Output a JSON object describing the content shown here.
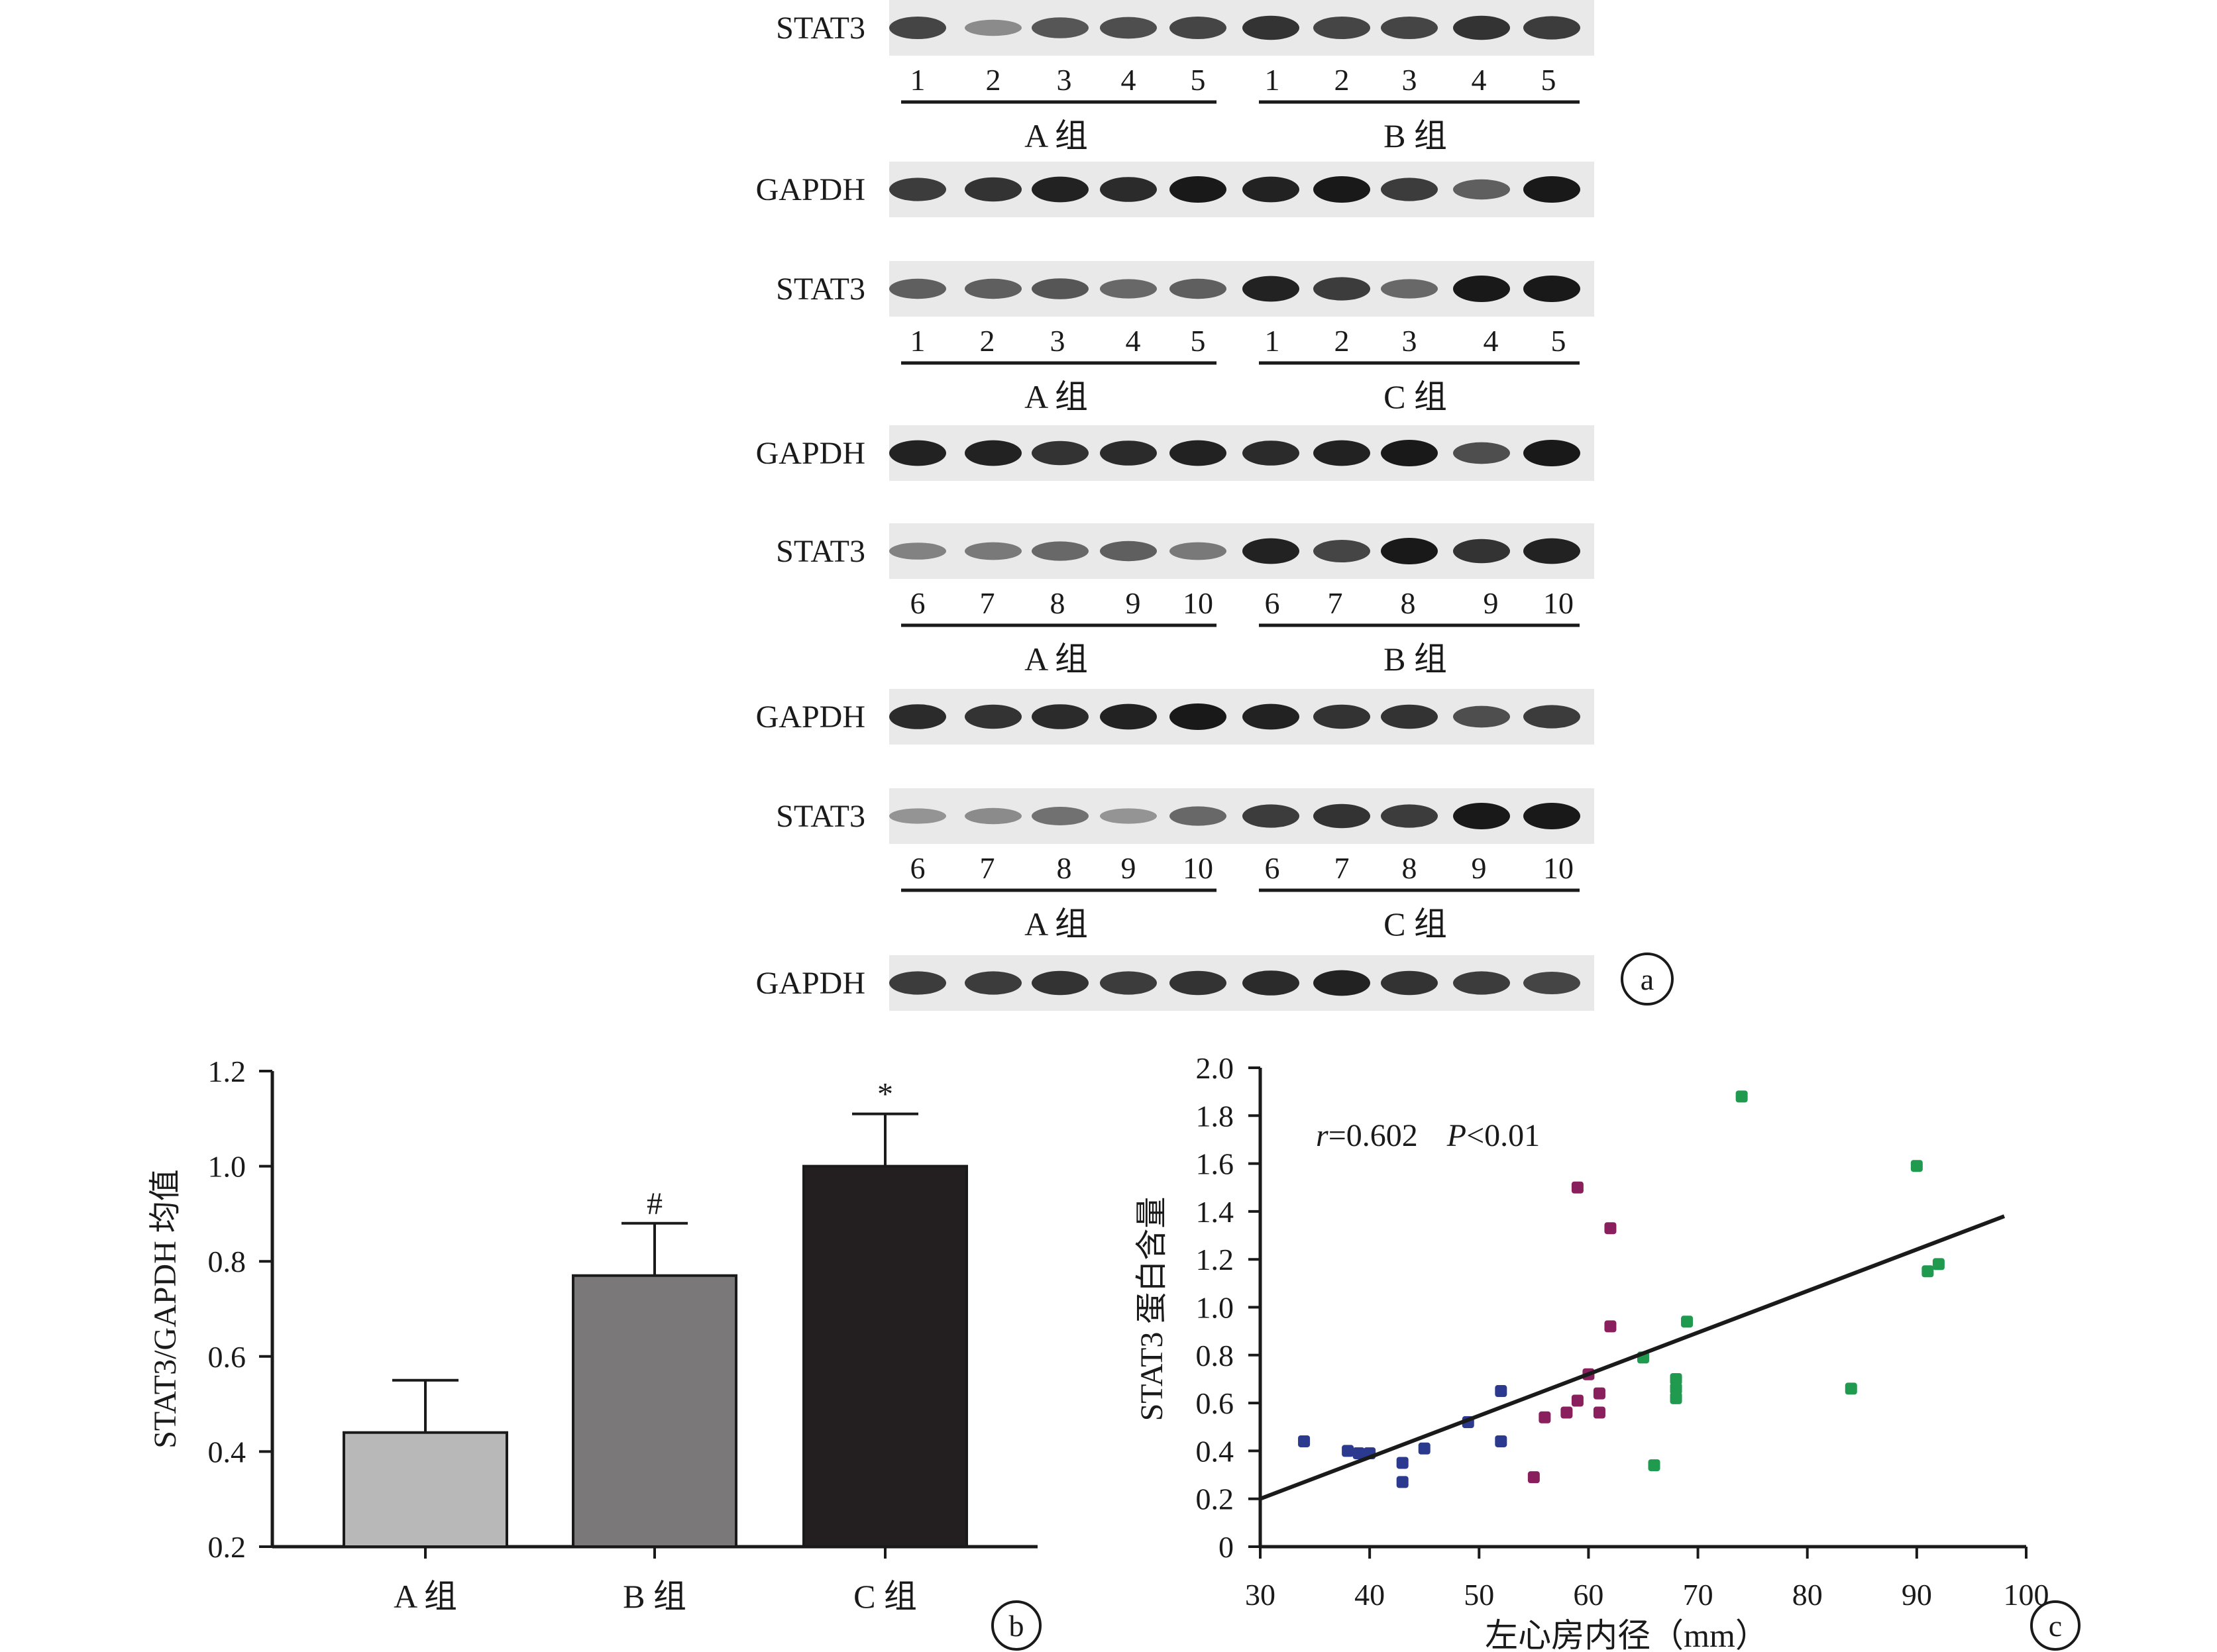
{
  "panel_a": {
    "blots": [
      {
        "protein": "STAT3",
        "lanes": [
          "1",
          "2",
          "3",
          "4",
          "5",
          "1",
          "2",
          "3",
          "4",
          "5"
        ],
        "groups": [
          "A 组",
          "B 组"
        ],
        "intensity": [
          0.75,
          0.35,
          0.65,
          0.7,
          0.75,
          0.85,
          0.75,
          0.75,
          0.85,
          0.8
        ]
      },
      {
        "protein": "GAPDH",
        "intensity": [
          0.8,
          0.85,
          0.95,
          0.9,
          1.0,
          0.95,
          1.0,
          0.8,
          0.6,
          1.0
        ]
      },
      {
        "protein": "STAT3",
        "lanes": [
          "1",
          "2",
          "3",
          "4",
          "5",
          "1",
          "2",
          "3",
          "4",
          "5"
        ],
        "groups": [
          "A 组",
          "C 组"
        ],
        "intensity": [
          0.6,
          0.6,
          0.65,
          0.55,
          0.6,
          0.95,
          0.8,
          0.55,
          1.0,
          1.0
        ]
      },
      {
        "protein": "GAPDH",
        "intensity": [
          0.95,
          0.95,
          0.85,
          0.9,
          0.95,
          0.9,
          0.95,
          1.0,
          0.7,
          1.0
        ]
      },
      {
        "protein": "STAT3",
        "lanes": [
          "6",
          "7",
          "8",
          "9",
          "10",
          "6",
          "7",
          "8",
          "9",
          "10"
        ],
        "groups": [
          "A 组",
          "B 组"
        ],
        "intensity": [
          0.4,
          0.45,
          0.55,
          0.6,
          0.45,
          0.95,
          0.75,
          1.0,
          0.85,
          0.95
        ]
      },
      {
        "protein": "GAPDH",
        "intensity": [
          0.9,
          0.85,
          0.9,
          0.95,
          1.0,
          0.95,
          0.85,
          0.85,
          0.7,
          0.8
        ]
      },
      {
        "protein": "STAT3",
        "lanes": [
          "6",
          "7",
          "8",
          "9",
          "10",
          "6",
          "7",
          "8",
          "9",
          "10"
        ],
        "groups": [
          "A 组",
          "C 组"
        ],
        "intensity": [
          0.3,
          0.35,
          0.5,
          0.3,
          0.55,
          0.8,
          0.85,
          0.8,
          1.0,
          1.0
        ]
      },
      {
        "protein": "GAPDH",
        "intensity": [
          0.8,
          0.8,
          0.85,
          0.8,
          0.85,
          0.9,
          0.95,
          0.85,
          0.8,
          0.75
        ]
      }
    ],
    "panel_label": "a"
  },
  "chart_data": [
    {
      "type": "bar",
      "categories": [
        "A 组",
        "B 组",
        "C 组"
      ],
      "values": [
        0.44,
        0.77,
        1.0
      ],
      "errors": [
        0.11,
        0.11,
        0.11
      ],
      "annotations": [
        "",
        "#",
        "*"
      ],
      "colors": [
        "#b8b8b8",
        "#7a7878",
        "#231f20"
      ],
      "xlabel": "",
      "ylabel": "STAT3/GAPDH 均值",
      "ylim": [
        0.2,
        1.2
      ],
      "yticks": [
        "0.2",
        "0.4",
        "0.6",
        "0.8",
        "1.0",
        "1.2"
      ],
      "grid": false,
      "panel_label": "b"
    },
    {
      "type": "scatter",
      "xlabel": "左心房内径（mm）",
      "ylabel": "STAT3 蛋白含量",
      "xlim": [
        30,
        100
      ],
      "ylim": [
        0,
        2.0
      ],
      "xticks": [
        "30",
        "40",
        "50",
        "60",
        "70",
        "80",
        "90",
        "100"
      ],
      "yticks": [
        "0",
        "0.2",
        "0.4",
        "0.6",
        "0.8",
        "1.0",
        "1.2",
        "1.4",
        "1.6",
        "1.8",
        "2.0"
      ],
      "annotation_r": "r",
      "annotation_r_value": "=0.602",
      "annotation_p": "P",
      "annotation_p_value": "<0.01",
      "grid": false,
      "series": [
        {
          "color": "#2b3a8f",
          "points": [
            [
              34,
              0.44
            ],
            [
              38,
              0.4
            ],
            [
              39,
              0.39
            ],
            [
              40,
              0.39
            ],
            [
              43,
              0.35
            ],
            [
              43,
              0.27
            ],
            [
              45,
              0.41
            ],
            [
              49,
              0.52
            ],
            [
              52,
              0.65
            ],
            [
              52,
              0.44
            ]
          ]
        },
        {
          "color": "#8a1f5e",
          "points": [
            [
              55,
              0.29
            ],
            [
              56,
              0.54
            ],
            [
              58,
              0.56
            ],
            [
              59,
              1.5
            ],
            [
              59,
              0.61
            ],
            [
              60,
              0.72
            ],
            [
              61,
              0.64
            ],
            [
              61,
              0.56
            ],
            [
              62,
              1.33
            ],
            [
              62,
              0.92
            ]
          ]
        },
        {
          "color": "#1f9a4e",
          "points": [
            [
              65,
              0.79
            ],
            [
              66,
              0.34
            ],
            [
              68,
              0.7
            ],
            [
              68,
              0.66
            ],
            [
              68,
              0.62
            ],
            [
              69,
              0.94
            ],
            [
              74,
              1.88
            ],
            [
              84,
              0.66
            ],
            [
              90,
              1.59
            ],
            [
              91,
              1.15
            ],
            [
              92,
              1.18
            ]
          ]
        }
      ],
      "fit_line": {
        "x": [
          30,
          98
        ],
        "y": [
          0.2,
          1.38
        ]
      },
      "panel_label": "c"
    }
  ]
}
